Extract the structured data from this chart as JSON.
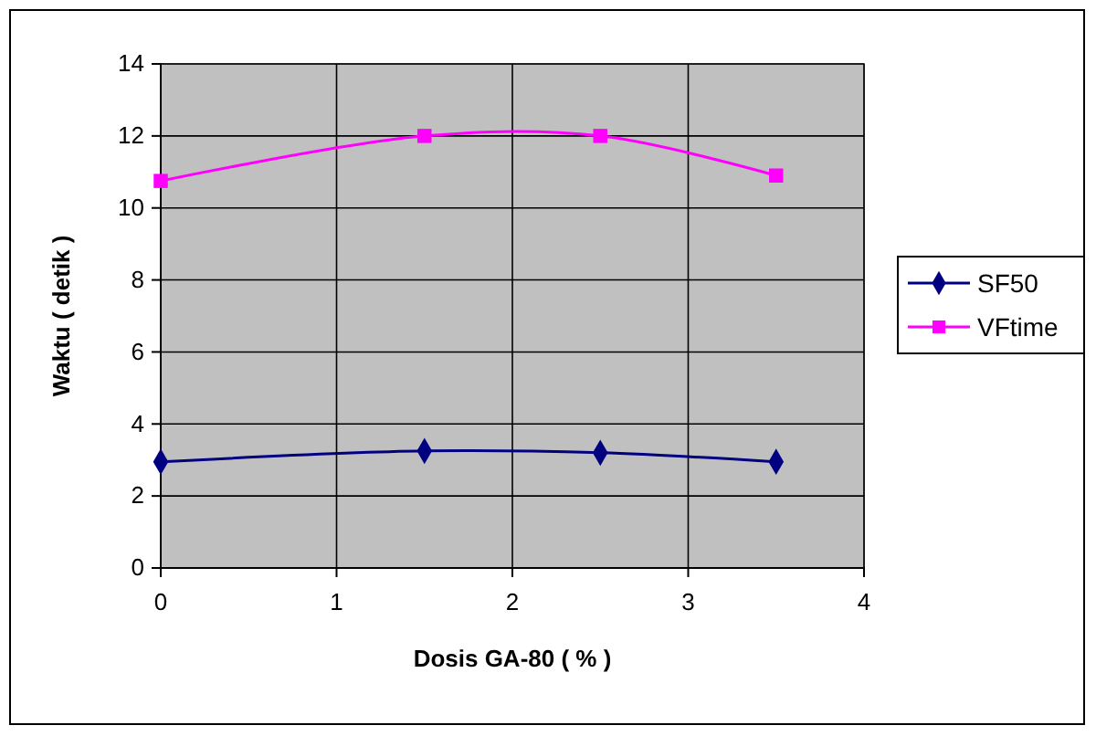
{
  "chart_data": {
    "type": "line",
    "xlabel": "Dosis GA-80 ( % )",
    "ylabel": "Waktu ( detik )",
    "x": [
      0,
      1.5,
      2.5,
      3.5
    ],
    "series": [
      {
        "name": "SF50",
        "color": "#000080",
        "values": [
          2.95,
          3.25,
          3.2,
          2.95
        ],
        "marker": "diamond"
      },
      {
        "name": "VFtime",
        "color": "#ff00ff",
        "values": [
          10.75,
          12.0,
          12.0,
          10.9
        ],
        "marker": "square"
      }
    ],
    "xlim": [
      0,
      4
    ],
    "xticks": [
      0,
      1,
      2,
      3,
      4
    ],
    "ylim": [
      0,
      14
    ],
    "yticks": [
      0,
      2,
      4,
      6,
      8,
      10,
      12,
      14
    ],
    "grid": true,
    "legend": "right",
    "line_style": "solid"
  }
}
